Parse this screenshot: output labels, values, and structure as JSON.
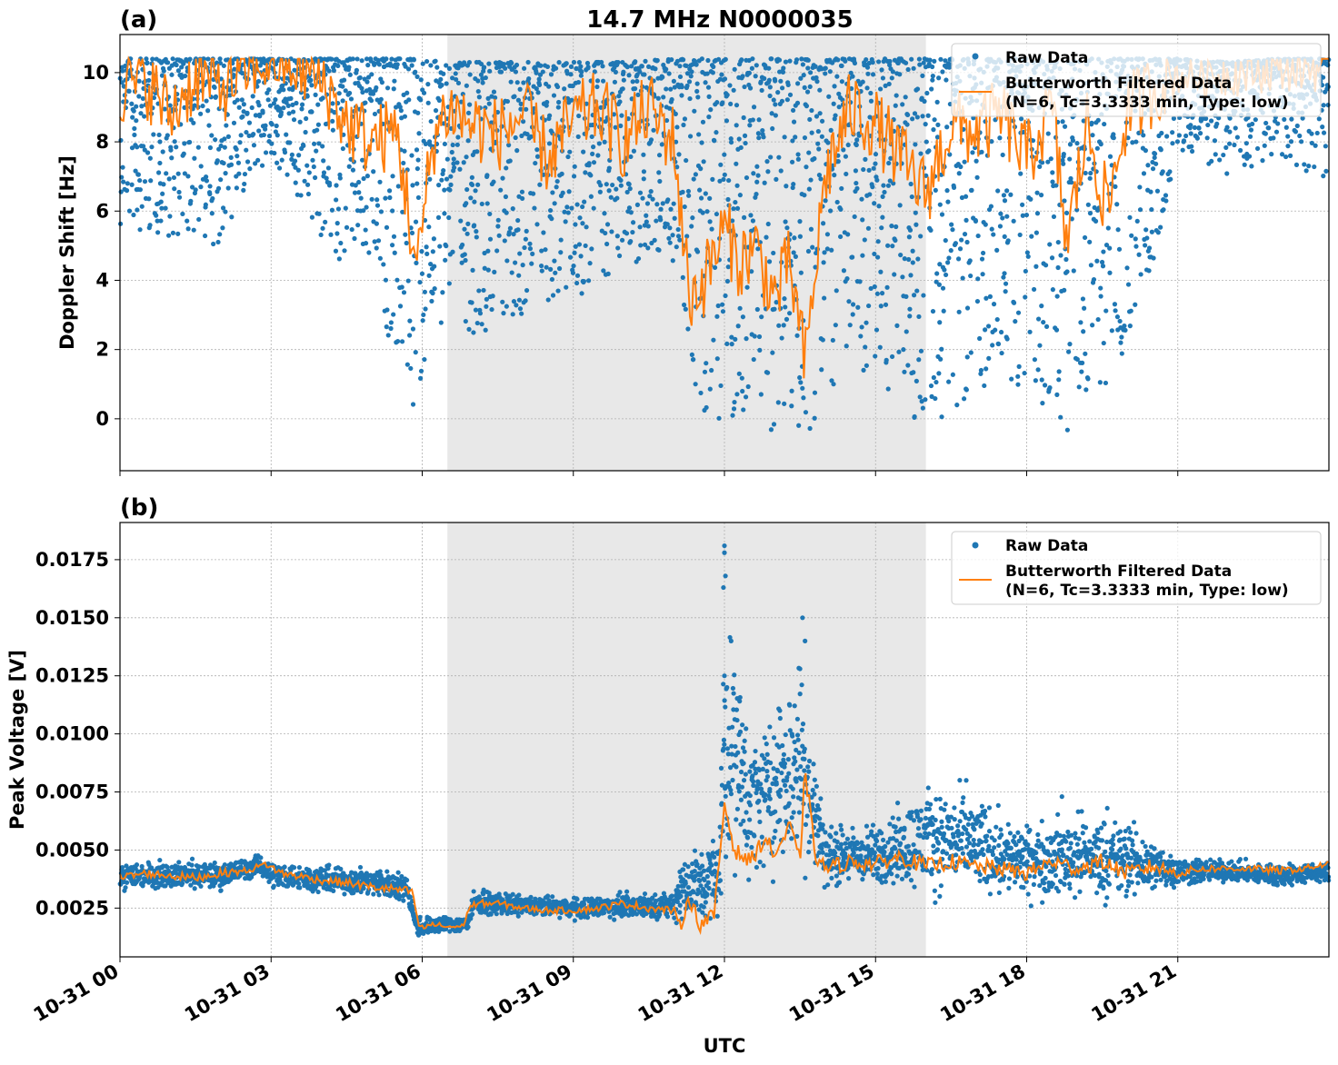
{
  "figure": {
    "title": "14.7 MHz N0000035",
    "xlabel": "UTC"
  },
  "legend": {
    "raw_label": "Raw Data",
    "filtered_label_line1": "Butterworth Filtered Data",
    "filtered_label_line2": "(N=6, Tc=3.3333 min, Type: low)",
    "placement": "top-right"
  },
  "colors": {
    "raw": "#1f77b4",
    "filtered": "#ff7f0e",
    "shade": "#e8e8e8",
    "grid": "#b0b0b0"
  },
  "chart_data": [
    {
      "type": "scatter",
      "panel_label": "(a)",
      "ylabel": "Doppler Shift [Hz]",
      "xlim_hours": [
        0,
        24
      ],
      "ylim": [
        -1.5,
        11.1
      ],
      "yticks": [
        0,
        2,
        4,
        6,
        8,
        10
      ],
      "ytick_labels": [
        "0",
        "2",
        "4",
        "6",
        "8",
        "10"
      ],
      "grid": true,
      "shaded_interval_hours": [
        6.5,
        16.0
      ],
      "series": [
        {
          "name": "Raw Data",
          "style": "points",
          "envelope_hours": [
            0,
            1,
            2,
            3,
            4,
            5,
            5.9,
            6.5,
            7,
            8,
            9,
            10,
            11,
            11.5,
            12,
            12.5,
            13,
            13.5,
            14,
            14.5,
            15,
            16,
            17,
            18,
            18.8,
            19,
            19.8,
            20.6,
            21,
            22,
            23,
            24
          ],
          "envelope_min": [
            5.6,
            5.2,
            5.0,
            7.5,
            5.0,
            3.8,
            -0.2,
            3.5,
            2.4,
            3.0,
            3.3,
            4.5,
            4.5,
            0.3,
            -0.2,
            -0.3,
            -0.4,
            -0.8,
            0.5,
            1.3,
            1.0,
            -0.3,
            0.8,
            1.0,
            -0.5,
            0.5,
            1.0,
            5.0,
            7.8,
            7.0,
            7.5,
            6.8
          ],
          "envelope_max": [
            10.4,
            10.4,
            10.4,
            10.4,
            10.4,
            10.4,
            10.4,
            10.3,
            10.3,
            10.3,
            10.3,
            10.3,
            10.4,
            10.4,
            10.4,
            10.4,
            10.4,
            10.4,
            10.4,
            10.4,
            10.4,
            10.4,
            10.4,
            10.4,
            10.3,
            10.4,
            10.4,
            10.4,
            10.4,
            10.3,
            10.4,
            10.4
          ]
        },
        {
          "name": "Butterworth Filtered Data\n(N=6, Tc=3.3333 min, Type: low)",
          "style": "line",
          "x_hours": [
            0,
            0.5,
            1,
            1.5,
            2,
            2.5,
            3,
            3.5,
            4,
            4.5,
            5,
            5.5,
            5.9,
            6.2,
            6.5,
            7,
            7.5,
            8,
            8.5,
            9,
            9.5,
            10,
            10.5,
            11,
            11.3,
            11.6,
            12,
            12.3,
            12.6,
            13,
            13.3,
            13.6,
            14,
            14.5,
            15,
            15.5,
            16,
            16.5,
            17,
            17.5,
            18,
            18.5,
            18.8,
            19.2,
            19.6,
            20,
            20.5,
            21,
            22,
            23,
            24
          ],
          "y": [
            9.5,
            9.8,
            8.8,
            9.9,
            9.6,
            10.0,
            10.2,
            10.1,
            9.8,
            8.5,
            8.0,
            8.3,
            4.2,
            8.0,
            9.0,
            8.5,
            8.2,
            8.8,
            7.5,
            8.6,
            9.0,
            8.0,
            9.0,
            8.0,
            3.5,
            4.0,
            5.5,
            4.5,
            5.0,
            3.5,
            4.5,
            1.5,
            7.0,
            9.0,
            8.5,
            7.5,
            6.5,
            8.5,
            8.3,
            8.8,
            7.5,
            9.0,
            5.0,
            8.5,
            6.0,
            8.9,
            9.5,
            9.9,
            10.0,
            10.1,
            10.2
          ]
        }
      ]
    },
    {
      "type": "scatter",
      "panel_label": "(b)",
      "ylabel": "Peak Voltage [V]",
      "xlim_hours": [
        0,
        24
      ],
      "ylim": [
        0.0004,
        0.0191
      ],
      "yticks": [
        0.0025,
        0.005,
        0.0075,
        0.01,
        0.0125,
        0.015,
        0.0175
      ],
      "ytick_labels": [
        "0.0025",
        "0.0050",
        "0.0075",
        "0.0100",
        "0.0125",
        "0.0150",
        "0.0175"
      ],
      "xticks_hours": [
        0,
        3,
        6,
        9,
        12,
        15,
        18,
        21
      ],
      "xtick_labels": [
        "10-31 00",
        "10-31 03",
        "10-31 06",
        "10-31 09",
        "10-31 12",
        "10-31 15",
        "10-31 18",
        "10-31 21"
      ],
      "grid": true,
      "shaded_interval_hours": [
        6.5,
        16.0
      ],
      "series": [
        {
          "name": "Raw Data",
          "style": "points",
          "envelope_hours": [
            0,
            1,
            2,
            2.8,
            3,
            4,
            5,
            5.7,
            5.9,
            6.5,
            6.9,
            7,
            8,
            9,
            10,
            11,
            11.1,
            11.5,
            11.9,
            12,
            12.5,
            13,
            13.5,
            14,
            15,
            16,
            17,
            18,
            19,
            20,
            21,
            22,
            23,
            24
          ],
          "envelope_min": [
            0.0031,
            0.0032,
            0.0031,
            0.0038,
            0.0032,
            0.003,
            0.0028,
            0.0026,
            0.0011,
            0.0013,
            0.0013,
            0.0021,
            0.002,
            0.0019,
            0.0019,
            0.0019,
            0.0011,
            0.0012,
            0.0012,
            0.0027,
            0.0029,
            0.003,
            0.003,
            0.003,
            0.003,
            0.0025,
            0.0024,
            0.0024,
            0.0023,
            0.0023,
            0.0032,
            0.0035,
            0.0032,
            0.0035
          ],
          "envelope_max": [
            0.0047,
            0.0047,
            0.0047,
            0.0049,
            0.0047,
            0.0045,
            0.0044,
            0.0042,
            0.0023,
            0.0023,
            0.0023,
            0.0034,
            0.0032,
            0.0031,
            0.0033,
            0.0033,
            0.0055,
            0.0058,
            0.0065,
            0.0181,
            0.011,
            0.012,
            0.015,
            0.0065,
            0.0065,
            0.0085,
            0.008,
            0.0065,
            0.0072,
            0.0068,
            0.005,
            0.0047,
            0.0046,
            0.0046
          ],
          "outliers_hours": [
            12.0,
            12.0,
            12.02,
            11.98,
            12.0,
            12.05,
            12.4,
            12.9,
            13.1,
            13.55,
            13.6,
            13.5,
            16.8,
            18.7,
            19.6
          ],
          "outliers_values": [
            0.0181,
            0.0178,
            0.0168,
            0.0163,
            0.0125,
            0.012,
            0.0097,
            0.0103,
            0.011,
            0.015,
            0.014,
            0.0128,
            0.008,
            0.0073,
            0.0068
          ]
        },
        {
          "name": "Butterworth Filtered Data\n(N=6, Tc=3.3333 min, Type: low)",
          "style": "line",
          "x_hours": [
            0,
            0.5,
            1,
            1.5,
            2,
            2.5,
            2.9,
            3.2,
            3.5,
            4,
            4.5,
            5,
            5.5,
            5.8,
            5.95,
            6.2,
            6.5,
            6.8,
            6.95,
            7.2,
            7.5,
            8,
            8.5,
            9,
            9.5,
            10,
            10.5,
            11,
            11.1,
            11.3,
            11.5,
            11.8,
            12,
            12.2,
            12.5,
            12.8,
            13,
            13.3,
            13.5,
            13.6,
            13.8,
            14,
            14.5,
            15,
            15.5,
            16,
            16.5,
            17,
            17.5,
            18,
            18.5,
            19,
            19.5,
            20,
            20.5,
            21,
            21.5,
            22,
            22.5,
            23,
            23.5,
            24
          ],
          "y": [
            0.0038,
            0.004,
            0.0039,
            0.0038,
            0.004,
            0.0041,
            0.0044,
            0.004,
            0.0039,
            0.0037,
            0.0036,
            0.0034,
            0.0033,
            0.0032,
            0.0016,
            0.0018,
            0.0017,
            0.0017,
            0.0026,
            0.0027,
            0.0027,
            0.0025,
            0.0024,
            0.0024,
            0.0025,
            0.0027,
            0.0025,
            0.0024,
            0.0016,
            0.003,
            0.0018,
            0.0022,
            0.007,
            0.005,
            0.0045,
            0.0055,
            0.0048,
            0.006,
            0.0045,
            0.0085,
            0.0048,
            0.0042,
            0.0045,
            0.0044,
            0.0047,
            0.0043,
            0.0045,
            0.0043,
            0.0042,
            0.004,
            0.0045,
            0.0042,
            0.0045,
            0.004,
            0.0043,
            0.004,
            0.0042,
            0.0042,
            0.0042,
            0.0041,
            0.0042,
            0.0044
          ]
        }
      ]
    }
  ]
}
